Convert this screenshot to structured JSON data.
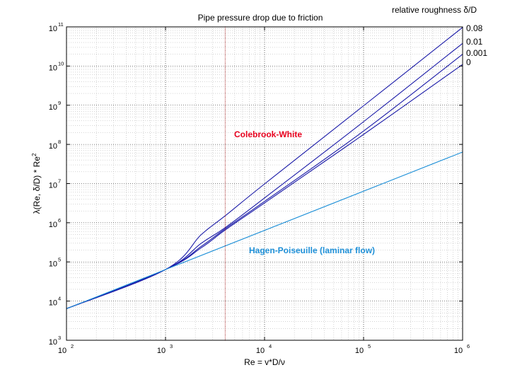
{
  "chart_data": {
    "type": "line",
    "title": "Pipe pressure drop due to friction",
    "xlabel": "Re = v*D/ν",
    "ylabel": "λ(Re, δ/D) * Re²",
    "xscale": "log",
    "yscale": "log",
    "xlim": [
      100,
      1000000
    ],
    "ylim": [
      1000,
      100000000000
    ],
    "grid": true,
    "x_ticks": [
      {
        "base": "10",
        "exp": "2"
      },
      {
        "base": "10",
        "exp": "3"
      },
      {
        "base": "10",
        "exp": "4"
      },
      {
        "base": "10",
        "exp": "5"
      },
      {
        "base": "10",
        "exp": "6"
      }
    ],
    "y_ticks": [
      {
        "base": "10",
        "exp": "3"
      },
      {
        "base": "10",
        "exp": "4"
      },
      {
        "base": "10",
        "exp": "5"
      },
      {
        "base": "10",
        "exp": "6"
      },
      {
        "base": "10",
        "exp": "7"
      },
      {
        "base": "10",
        "exp": "8"
      },
      {
        "base": "10",
        "exp": "9"
      },
      {
        "base": "10",
        "exp": "10"
      },
      {
        "base": "10",
        "exp": "11"
      }
    ],
    "legend_title": "relative roughness δ/D",
    "legend_placement": "top-right",
    "series": [
      {
        "name": "0.08",
        "color": "#1a1aa8",
        "x": [
          100,
          1000,
          2300,
          4000,
          10000,
          100000,
          1000000
        ],
        "y": [
          6400,
          64000,
          500000,
          1500000,
          9800000,
          970000000,
          97000000000
        ]
      },
      {
        "name": "0.01",
        "color": "#1a1aa8",
        "x": [
          100,
          1000,
          2300,
          4000,
          10000,
          100000,
          1000000
        ],
        "y": [
          6400,
          64000,
          300000,
          750000,
          4300000,
          380000000,
          38000000000
        ]
      },
      {
        "name": "0.001",
        "color": "#1a1aa8",
        "x": [
          100,
          1000,
          2300,
          4000,
          10000,
          100000,
          1000000
        ],
        "y": [
          6400,
          64000,
          250000,
          700000,
          3500000,
          220000000,
          20000000000
        ]
      },
      {
        "name": "0",
        "color": "#1a1aa8",
        "x": [
          100,
          1000,
          2300,
          4000,
          10000,
          100000,
          1000000
        ],
        "y": [
          6400,
          64000,
          230000,
          650000,
          3200000,
          180000000,
          11000000000
        ]
      },
      {
        "name": "Hagen-Poiseuille (laminar flow)",
        "color": "#1e90d8",
        "x": [
          100,
          1000000
        ],
        "y": [
          6400,
          64000000
        ]
      }
    ],
    "vertical_marker": {
      "x": 4000,
      "color": "#b01818"
    },
    "annotations": [
      {
        "text": "Colebrook-White",
        "color": "#e8001e",
        "x": 10000,
        "y": 200000000
      },
      {
        "text": "Hagen-Poiseuille (laminar flow)",
        "color": "#1e90d8",
        "x": 100000,
        "y": 200000
      }
    ]
  }
}
